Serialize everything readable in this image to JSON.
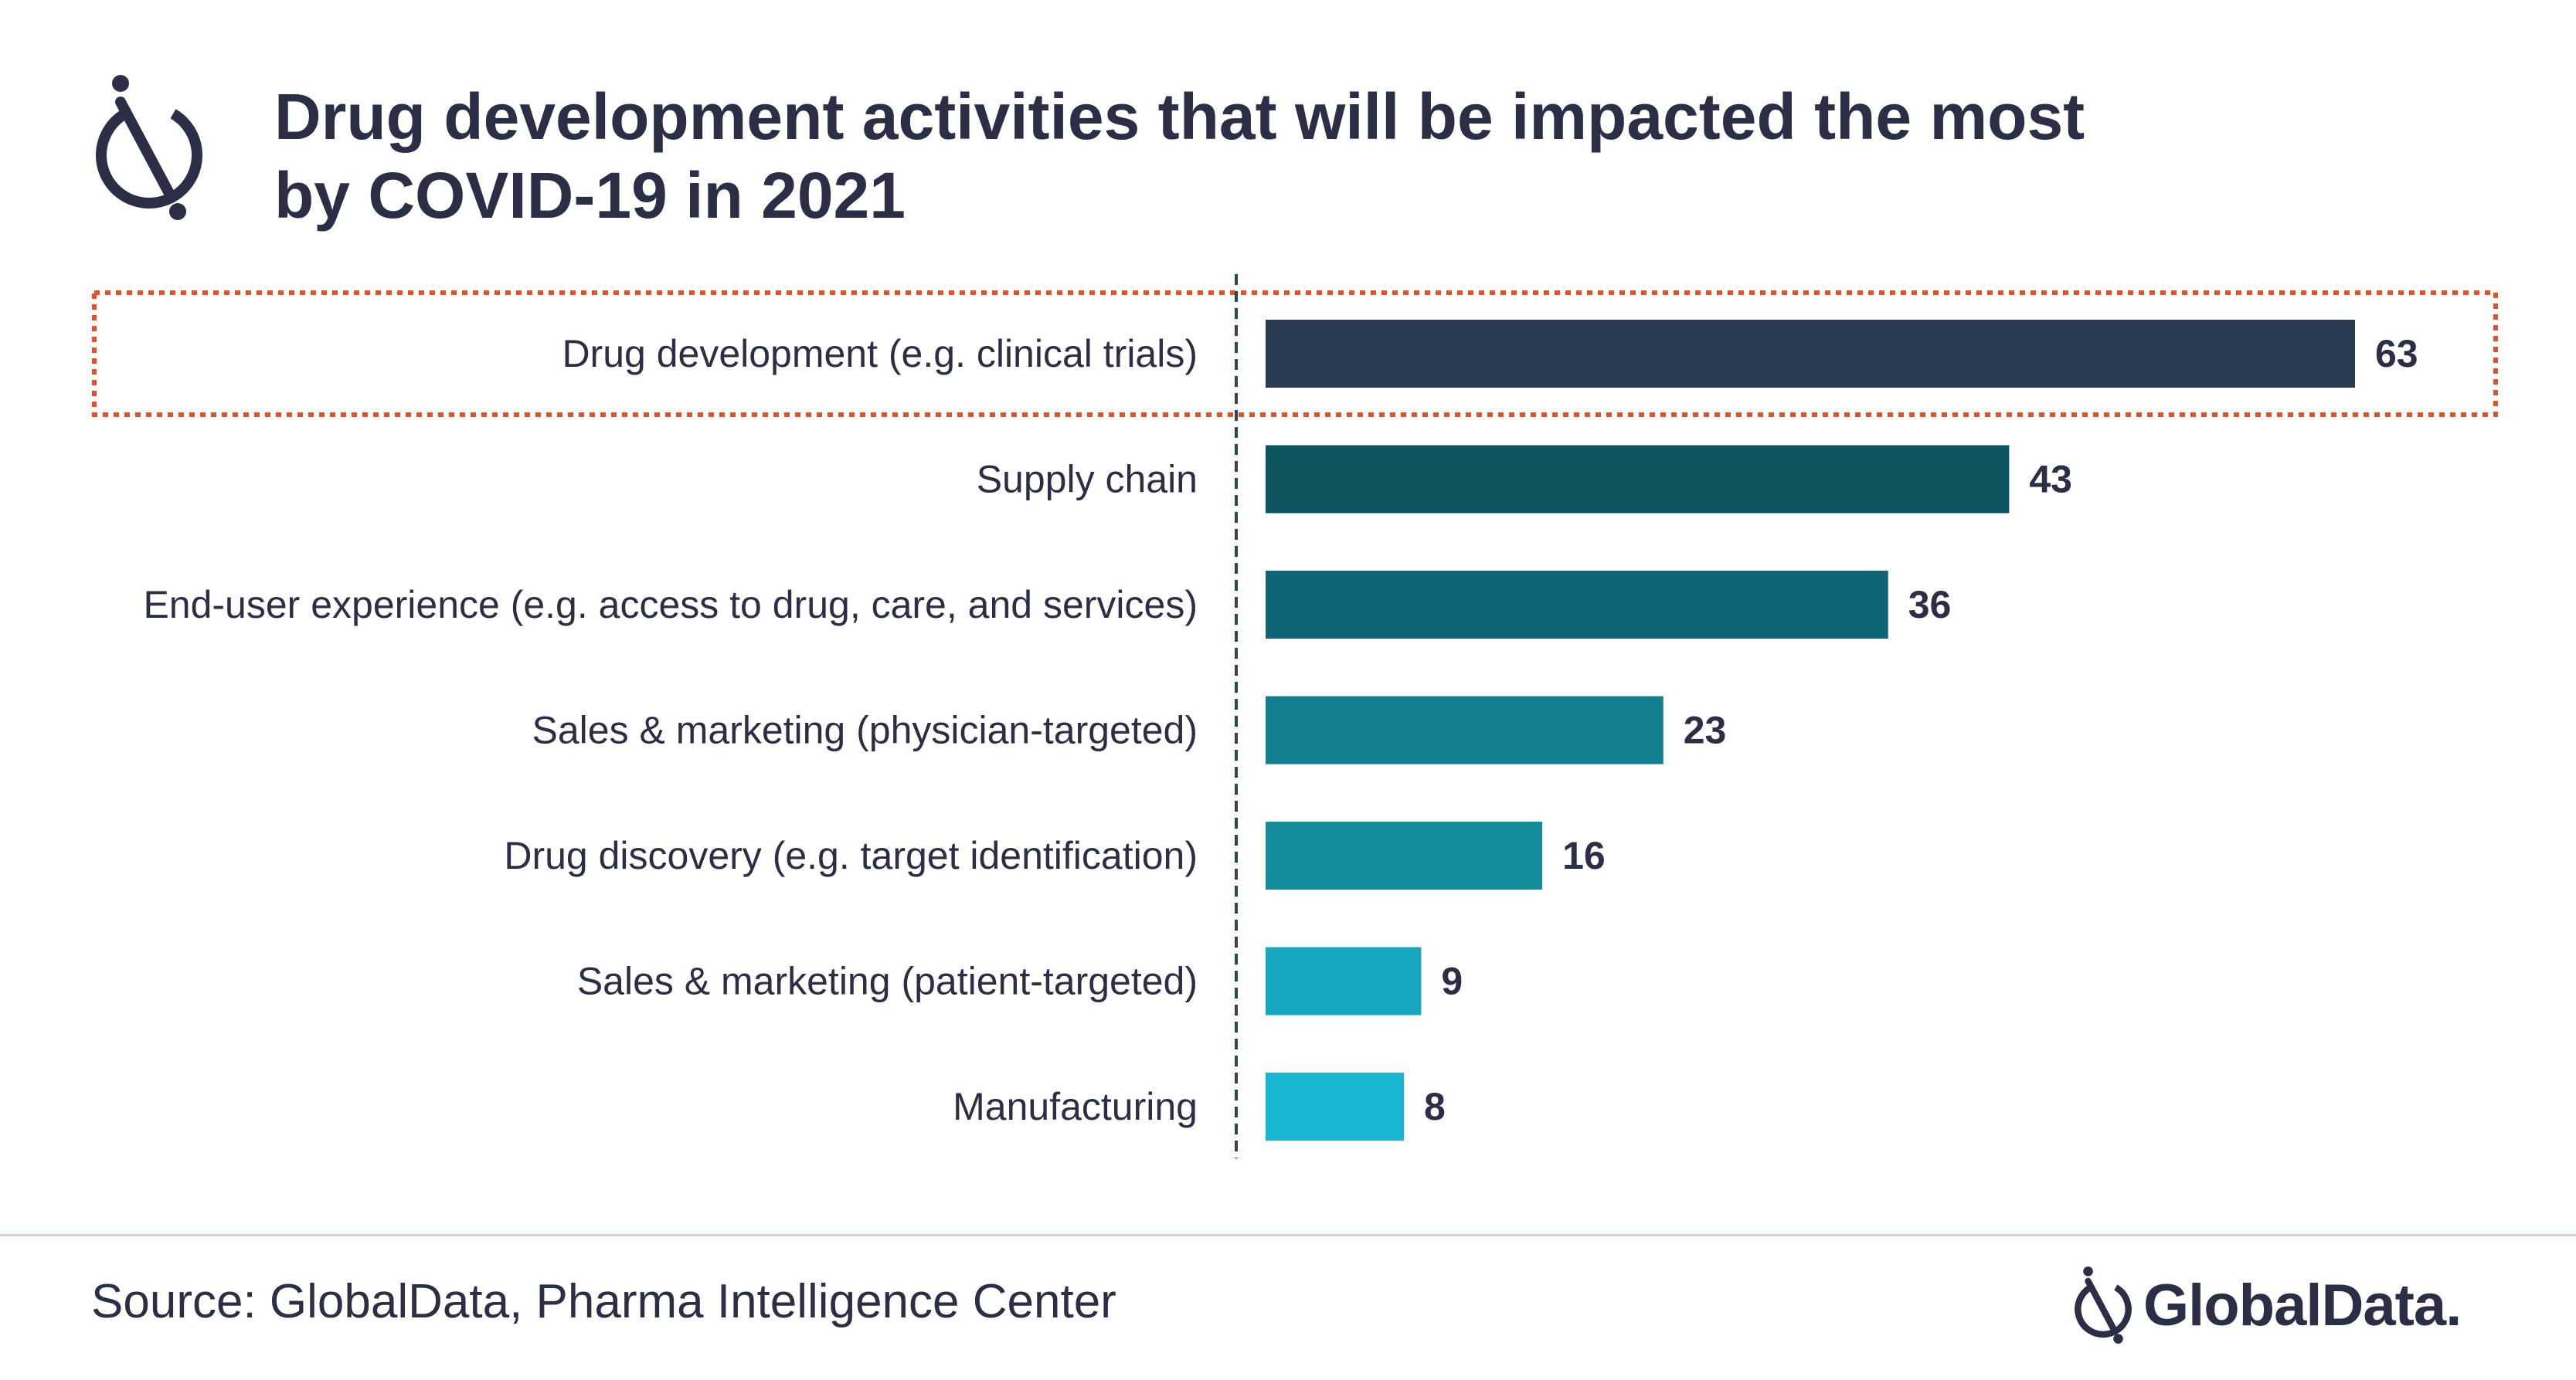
{
  "title": {
    "line1": "Drug development activities that will be impacted the most",
    "line2": "by COVID-19 in 2021"
  },
  "source": "Source: GlobalData, Pharma Intelligence Center",
  "brand": {
    "name": "GlobalData.",
    "icon": "globaldata-logo-icon"
  },
  "colors": {
    "text": "#2b2e45",
    "highlight_border": "#e0522c",
    "axis": "#2b4a4a",
    "bars": [
      "#283952",
      "#0b5560",
      "#0f6575",
      "#13808f",
      "#168d9c",
      "#17a6c0",
      "#18b6d3"
    ]
  },
  "chart_data": {
    "type": "bar",
    "orientation": "horizontal",
    "categories": [
      "Drug development (e.g. clinical trials)",
      "Supply chain",
      "End-user experience (e.g. access to drug, care, and services)",
      "Sales & marketing (physician-targeted)",
      "Drug discovery (e.g. target identification)",
      "Sales & marketing (patient-targeted)",
      "Manufacturing"
    ],
    "values": [
      63,
      43,
      36,
      23,
      16,
      9,
      8
    ],
    "data_labels": [
      "63",
      "43",
      "36",
      "23",
      "16",
      "9",
      "8"
    ],
    "highlighted_category": "Drug development (e.g. clinical trials)",
    "xlim": [
      0,
      63
    ],
    "grid": false,
    "legend": "none"
  }
}
